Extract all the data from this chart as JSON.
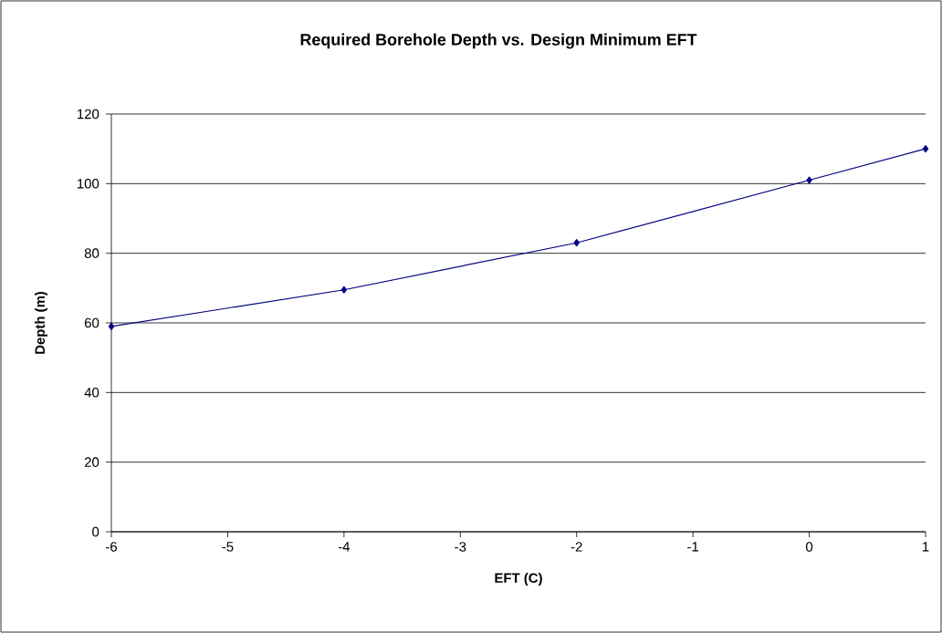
{
  "chart_data": {
    "type": "line",
    "title": "Required Borehole Depth vs. Design Minimum EFT",
    "xlabel": "EFT (C)",
    "ylabel": "Depth (m)",
    "series": [
      {
        "color": "#000080",
        "x": [
          -6,
          -4,
          -2,
          0,
          1
        ],
        "values": [
          59,
          69.5,
          83,
          101,
          110
        ]
      }
    ],
    "xlim": [
      -6,
      1
    ],
    "ylim": [
      0,
      120
    ],
    "xticks": [
      -6,
      -5,
      -4,
      -3,
      -2,
      -1,
      0,
      1
    ],
    "yticks": [
      0,
      20,
      40,
      60,
      80,
      100,
      120
    ],
    "grid": "y",
    "marker": "diamond",
    "line_style": "solid"
  }
}
